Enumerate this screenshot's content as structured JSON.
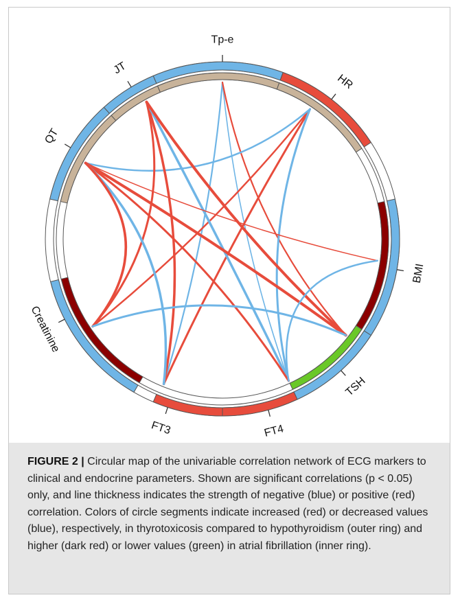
{
  "diagram": {
    "nodes": [
      {
        "id": "Tp-e",
        "label": "Tp-e",
        "outer": "#6fb5e6",
        "inner": "#c8b39a"
      },
      {
        "id": "HR",
        "label": "HR",
        "outer": "#e74c3c",
        "inner": "#c8b39a"
      },
      {
        "id": "BMI",
        "label": "BMI",
        "outer": "#6fb5e6",
        "inner": "#8b0000"
      },
      {
        "id": "TSH",
        "label": "TSH",
        "outer": "#6fb5e6",
        "inner": "#6ac828"
      },
      {
        "id": "FT4",
        "label": "FT4",
        "outer": "#e74c3c",
        "inner": "none"
      },
      {
        "id": "FT3",
        "label": "FT3",
        "outer": "#e74c3c",
        "inner": "none"
      },
      {
        "id": "Creatinine",
        "label": "Creatinine",
        "outer": "#6fb5e6",
        "inner": "#8b0000"
      },
      {
        "id": "QT",
        "label": "QT",
        "outer": "#6fb5e6",
        "inner": "#c8b39a"
      },
      {
        "id": "JT",
        "label": "JT",
        "outer": "#6fb5e6",
        "inner": "#c8b39a"
      }
    ],
    "links": [
      {
        "from": "Tp-e",
        "to": "FT3",
        "sign": "negative",
        "weight": 2.2
      },
      {
        "from": "Tp-e",
        "to": "FT4",
        "sign": "negative",
        "weight": 1.6
      },
      {
        "from": "Tp-e",
        "to": "TSH",
        "sign": "positive",
        "weight": 2.2
      },
      {
        "from": "HR",
        "to": "FT3",
        "sign": "positive",
        "weight": 3
      },
      {
        "from": "HR",
        "to": "Creatinine",
        "sign": "positive",
        "weight": 2.5
      },
      {
        "from": "HR",
        "to": "FT4",
        "sign": "negative",
        "weight": 3
      },
      {
        "from": "HR",
        "to": "QT",
        "sign": "negative",
        "weight": 2.5
      },
      {
        "from": "JT",
        "to": "FT3",
        "sign": "positive",
        "weight": 3.5
      },
      {
        "from": "JT",
        "to": "FT4",
        "sign": "negative",
        "weight": 3.5
      },
      {
        "from": "JT",
        "to": "TSH",
        "sign": "positive",
        "weight": 4
      },
      {
        "from": "JT",
        "to": "Creatinine",
        "sign": "positive",
        "weight": 3
      },
      {
        "from": "QT",
        "to": "BMI",
        "sign": "positive",
        "weight": 1.5
      },
      {
        "from": "QT",
        "to": "TSH",
        "sign": "positive",
        "weight": 4
      },
      {
        "from": "QT",
        "to": "FT4",
        "sign": "positive",
        "weight": 3
      },
      {
        "from": "QT",
        "to": "FT3",
        "sign": "negative",
        "weight": 3.5
      },
      {
        "from": "QT",
        "to": "Creatinine",
        "sign": "positive",
        "weight": 3.5
      },
      {
        "from": "Creatinine",
        "to": "TSH",
        "sign": "negative",
        "weight": 3
      },
      {
        "from": "BMI",
        "to": "FT4",
        "sign": "negative",
        "weight": 2.5
      }
    ],
    "colors": {
      "negative": "#6fb5e6",
      "positive": "#e74c3c",
      "ring_stroke": "#555555",
      "tick": "#333333"
    }
  },
  "caption": {
    "label": "FIGURE 2 |",
    "text": "Circular map of the univariable correlation network of ECG markers to clinical and endocrine parameters. Shown are significant correlations (p < 0.05) only, and line thickness indicates the strength of negative (blue) or positive (red) correlation. Colors of circle segments indicate increased (red) or decreased values (blue), respectively, in thyrotoxicosis compared to hypothyroidism (outer ring) and higher (dark red) or lower values (green) in atrial fibrillation (inner ring)."
  }
}
